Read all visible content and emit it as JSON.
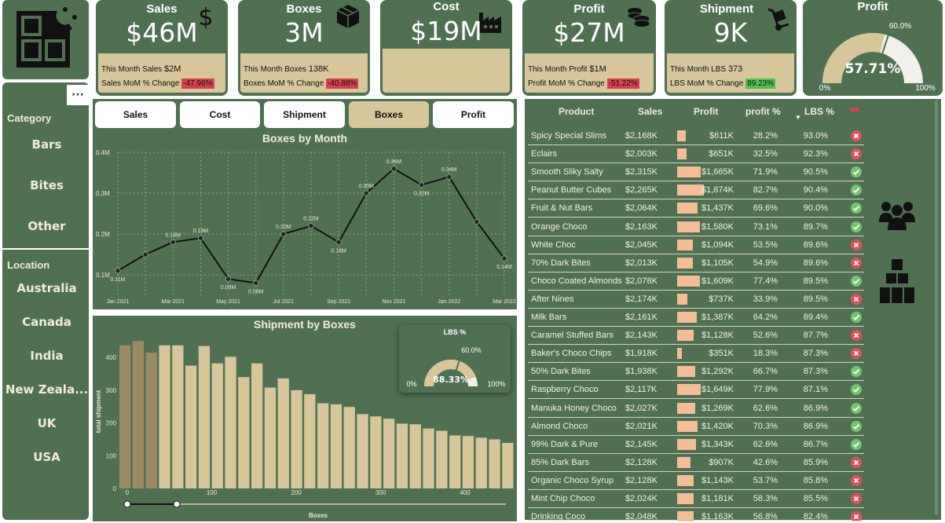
{
  "kpis": {
    "sales": {
      "title": "Sales",
      "value": "$46M",
      "line1_label": "This Month Sales",
      "line1_value": "$2M",
      "line2_label": "Sales MoM % Change",
      "line2_value": "-47.96%"
    },
    "boxes": {
      "title": "Boxes",
      "value": "3M",
      "line1_label": "This Month Boxes",
      "line1_value": "138K",
      "line2_label": "Boxes MoM % Change",
      "line2_value": "-40.88%"
    },
    "cost": {
      "title": "Cost",
      "value": "$19M"
    },
    "profit": {
      "title": "Profit",
      "value": "$27M",
      "line1_label": "This Month Profit",
      "line1_value": "$1M",
      "line2_label": "Profit MoM % Change",
      "line2_value": "-51.22%"
    },
    "shipment": {
      "title": "Shipment",
      "value": "9K",
      "line1_label": "This Month LBS",
      "line1_value": "373",
      "line2_label": "LBS MoM % Change",
      "line2_value": "89.23%"
    },
    "profit_gauge": {
      "title": "Profit",
      "value": "57.71%",
      "value_num": 57.71,
      "target": "60.0%",
      "target_num": 60.0,
      "min": "0%",
      "max": "100%"
    }
  },
  "colors": {
    "panel": "#4f7152",
    "tan": "#d6c69a",
    "bar_light": "#d6c69a",
    "bar_dark": "#9c8a62",
    "profit_bar": "#f4bd96",
    "negative": "#d9404d",
    "positive": "#4fc24f"
  },
  "slicer": {
    "more_label": "···",
    "category_label": "Category",
    "categories": [
      "Bars",
      "Bites",
      "Other"
    ],
    "location_label": "Location",
    "locations": [
      "Australia",
      "Canada",
      "India",
      "New Zeala...",
      "UK",
      "USA"
    ]
  },
  "tabs": [
    "Sales",
    "Cost",
    "Shipment",
    "Boxes",
    "Profit"
  ],
  "active_tab": "Boxes",
  "line_chart": {
    "type": "line",
    "title": "Boxes by Month",
    "y_ticks": [
      "0.4M",
      "0.3M",
      "0.2M",
      "0.1M"
    ],
    "x_ticks": [
      "Jan 2021",
      "Mar 2021",
      "May 2021",
      "Jul 2021",
      "Sep 2021",
      "Nov 2021",
      "Jan 2022",
      "Mar 2022"
    ],
    "values": [
      0.11,
      0.15,
      0.18,
      0.19,
      0.09,
      0.08,
      0.2,
      0.22,
      0.18,
      0.3,
      0.36,
      0.32,
      0.34,
      0.23,
      0.14
    ],
    "labels": [
      "0.11M",
      "",
      "0.18M",
      "0.19M",
      "0.09M",
      "0.08M",
      "0.20M",
      "0.22M",
      "0.18M",
      "0.30M",
      "0.36M",
      "0.32M",
      "0.34M",
      "",
      "0.14M"
    ],
    "ylim": [
      0.1,
      0.4
    ]
  },
  "bar_chart": {
    "type": "bar",
    "title": "Shipment by Boxes",
    "ylabel": "total shipment",
    "xlabel": "Boxes",
    "y_ticks": [
      "400",
      "300",
      "200",
      "100",
      "0"
    ],
    "x_ticks": [
      "0",
      "100",
      "200",
      "300",
      "400"
    ],
    "values": [
      437,
      450,
      415,
      437,
      437,
      375,
      435,
      382,
      402,
      340,
      382,
      308,
      336,
      300,
      288,
      260,
      257,
      249,
      227,
      220,
      213,
      198,
      196,
      183,
      176,
      162,
      160,
      155,
      150,
      139
    ],
    "highlighted": [
      0,
      1,
      2
    ],
    "ylim": [
      0,
      470
    ]
  },
  "lbs_gauge": {
    "title": "LBS %",
    "value": "88.33%",
    "value_num": 88.33,
    "target": "60.0%",
    "target_num": 60.0,
    "min": "0%",
    "max": "100%"
  },
  "table": {
    "headers": [
      "Product",
      "Sales",
      "Profit",
      "profit %",
      "LBS %"
    ],
    "rows": [
      {
        "product": "Spicy Special Slims",
        "sales": "$2,168K",
        "profit": "$611K",
        "profit_num": 611,
        "pct": "28.2%",
        "lbs": "93.0%",
        "status": "bad"
      },
      {
        "product": "Eclairs",
        "sales": "$2,003K",
        "profit": "$651K",
        "profit_num": 651,
        "pct": "32.5%",
        "lbs": "92.3%",
        "status": "bad"
      },
      {
        "product": "Smooth Sliky Salty",
        "sales": "$2,315K",
        "profit": "$1,665K",
        "profit_num": 1665,
        "pct": "71.9%",
        "lbs": "90.5%",
        "status": "good"
      },
      {
        "product": "Peanut Butter Cubes",
        "sales": "$2,265K",
        "profit": "$1,874K",
        "profit_num": 1874,
        "pct": "82.7%",
        "lbs": "90.4%",
        "status": "good"
      },
      {
        "product": "Fruit & Nut Bars",
        "sales": "$2,064K",
        "profit": "$1,437K",
        "profit_num": 1437,
        "pct": "69.6%",
        "lbs": "90.0%",
        "status": "good"
      },
      {
        "product": "Orange Choco",
        "sales": "$2,163K",
        "profit": "$1,580K",
        "profit_num": 1580,
        "pct": "73.1%",
        "lbs": "89.7%",
        "status": "good"
      },
      {
        "product": "White Choc",
        "sales": "$2,045K",
        "profit": "$1,094K",
        "profit_num": 1094,
        "pct": "53.5%",
        "lbs": "89.6%",
        "status": "bad"
      },
      {
        "product": "70% Dark Bites",
        "sales": "$2,013K",
        "profit": "$1,105K",
        "profit_num": 1105,
        "pct": "54.9%",
        "lbs": "89.6%",
        "status": "bad"
      },
      {
        "product": "Choco Coated Almonds",
        "sales": "$2,078K",
        "profit": "$1,609K",
        "profit_num": 1609,
        "pct": "77.4%",
        "lbs": "89.5%",
        "status": "good"
      },
      {
        "product": "After Nines",
        "sales": "$2,174K",
        "profit": "$737K",
        "profit_num": 737,
        "pct": "33.9%",
        "lbs": "89.5%",
        "status": "bad"
      },
      {
        "product": "Milk Bars",
        "sales": "$2,161K",
        "profit": "$1,387K",
        "profit_num": 1387,
        "pct": "64.2%",
        "lbs": "89.4%",
        "status": "good"
      },
      {
        "product": "Caramel Stuffed Bars",
        "sales": "$2,143K",
        "profit": "$1,128K",
        "profit_num": 1128,
        "pct": "52.6%",
        "lbs": "87.7%",
        "status": "bad"
      },
      {
        "product": "Baker's Choco Chips",
        "sales": "$1,918K",
        "profit": "$351K",
        "profit_num": 351,
        "pct": "18.3%",
        "lbs": "87.3%",
        "status": "bad"
      },
      {
        "product": "50% Dark Bites",
        "sales": "$1,938K",
        "profit": "$1,292K",
        "profit_num": 1292,
        "pct": "66.7%",
        "lbs": "87.3%",
        "status": "good"
      },
      {
        "product": "Raspberry Choco",
        "sales": "$2,117K",
        "profit": "$1,649K",
        "profit_num": 1649,
        "pct": "77.9%",
        "lbs": "87.1%",
        "status": "good"
      },
      {
        "product": "Manuka Honey Choco",
        "sales": "$2,027K",
        "profit": "$1,269K",
        "profit_num": 1269,
        "pct": "62.6%",
        "lbs": "86.9%",
        "status": "good"
      },
      {
        "product": "Almond Choco",
        "sales": "$2,021K",
        "profit": "$1,420K",
        "profit_num": 1420,
        "pct": "70.3%",
        "lbs": "86.9%",
        "status": "good"
      },
      {
        "product": "99% Dark & Pure",
        "sales": "$2,145K",
        "profit": "$1,343K",
        "profit_num": 1343,
        "pct": "62.6%",
        "lbs": "86.7%",
        "status": "good"
      },
      {
        "product": "85% Dark Bars",
        "sales": "$2,128K",
        "profit": "$907K",
        "profit_num": 907,
        "pct": "42.6%",
        "lbs": "85.9%",
        "status": "bad"
      },
      {
        "product": "Organic Choco Syrup",
        "sales": "$2,128K",
        "profit": "$1,143K",
        "profit_num": 1143,
        "pct": "53.7%",
        "lbs": "85.8%",
        "status": "bad"
      },
      {
        "product": "Mint Chip Choco",
        "sales": "$2,024K",
        "profit": "$1,181K",
        "profit_num": 1181,
        "pct": "58.3%",
        "lbs": "85.5%",
        "status": "bad"
      },
      {
        "product": "Drinking Coco",
        "sales": "$2,048K",
        "profit": "$1,163K",
        "profit_num": 1163,
        "pct": "56.8%",
        "lbs": "82.4%",
        "status": "bad"
      }
    ]
  }
}
